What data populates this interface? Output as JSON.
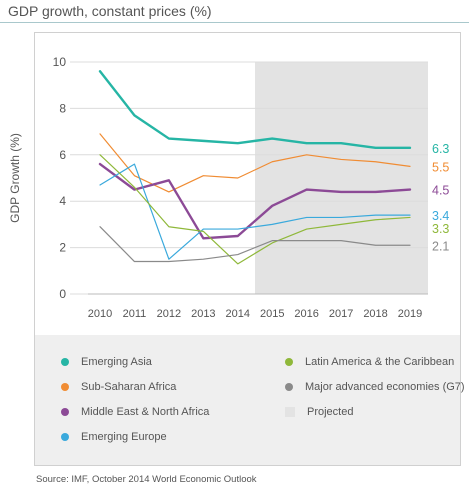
{
  "header": {
    "title": "GDP growth, constant prices (%)"
  },
  "footer": {
    "source": "Source: IMF, October 2014 World Economic Outlook"
  },
  "legend": {
    "items": [
      {
        "label": "Emerging Asia",
        "color": "#26b5a5",
        "marker": "circle"
      },
      {
        "label": "Sub-Saharan Africa",
        "color": "#f08c33",
        "marker": "circle"
      },
      {
        "label": "Middle East & North Africa",
        "color": "#8c4a96",
        "marker": "circle"
      },
      {
        "label": "Emerging Europe",
        "color": "#3aa9dc",
        "marker": "circle"
      },
      {
        "label": "Latin America & the Caribbean",
        "color": "#8fb83a",
        "marker": "circle"
      },
      {
        "label": "Major advanced economies (G7)",
        "color": "#8a8a8a",
        "marker": "circle"
      },
      {
        "label": "Projected",
        "color": "#e3e3e3",
        "marker": "square"
      }
    ]
  },
  "chart_data": {
    "type": "line",
    "ylabel": "GDP Growth (%)",
    "xlabel": "",
    "ylim": [
      0,
      10
    ],
    "yticks": [
      "0",
      "2",
      "4",
      "6",
      "8",
      "10"
    ],
    "x": [
      "2010",
      "2011",
      "2012",
      "2013",
      "2014",
      "2015",
      "2016",
      "2017",
      "2018",
      "2019"
    ],
    "projected_from": "2014.5",
    "projected_to": "2019.5",
    "projected_color": "#e3e3e3",
    "series": [
      {
        "name": "Emerging Asia",
        "color": "#26b5a5",
        "width": 2.4,
        "values": [
          9.6,
          7.7,
          6.7,
          6.6,
          6.5,
          6.7,
          6.5,
          6.5,
          6.3,
          6.3
        ],
        "end_label": "6.3"
      },
      {
        "name": "Sub-Saharan Africa",
        "color": "#f08c33",
        "width": 1.2,
        "values": [
          6.9,
          5.1,
          4.4,
          5.1,
          5.0,
          5.7,
          6.0,
          5.8,
          5.7,
          5.5
        ],
        "end_label": "5.5"
      },
      {
        "name": "Middle East & North Africa",
        "color": "#8c4a96",
        "width": 2.4,
        "values": [
          5.6,
          4.5,
          4.9,
          2.4,
          2.5,
          3.8,
          4.5,
          4.4,
          4.4,
          4.5
        ],
        "end_label": "4.5"
      },
      {
        "name": "Emerging Europe",
        "color": "#3aa9dc",
        "width": 1.2,
        "values": [
          4.7,
          5.6,
          1.5,
          2.8,
          2.8,
          3.0,
          3.3,
          3.3,
          3.4,
          3.4
        ],
        "end_label": "3.4"
      },
      {
        "name": "Latin America & the Caribbean",
        "color": "#8fb83a",
        "width": 1.2,
        "values": [
          6.0,
          4.6,
          2.9,
          2.7,
          1.3,
          2.2,
          2.8,
          3.0,
          3.2,
          3.3
        ],
        "end_label": "3.3"
      },
      {
        "name": "Major advanced economies (G7)",
        "color": "#8a8a8a",
        "width": 1.2,
        "values": [
          2.9,
          1.4,
          1.4,
          1.5,
          1.7,
          2.3,
          2.3,
          2.3,
          2.1,
          2.1
        ],
        "end_label": "2.1"
      }
    ]
  }
}
